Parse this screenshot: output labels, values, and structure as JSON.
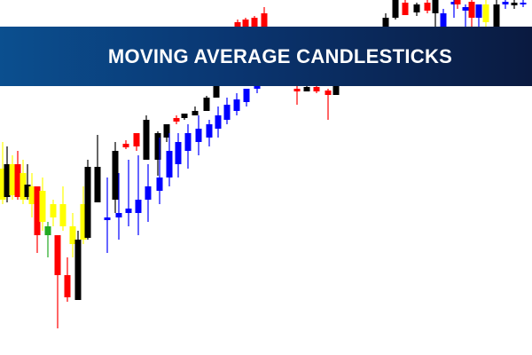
{
  "banner": {
    "title": "MOVING AVERAGE CANDLESTICKS"
  }
}
